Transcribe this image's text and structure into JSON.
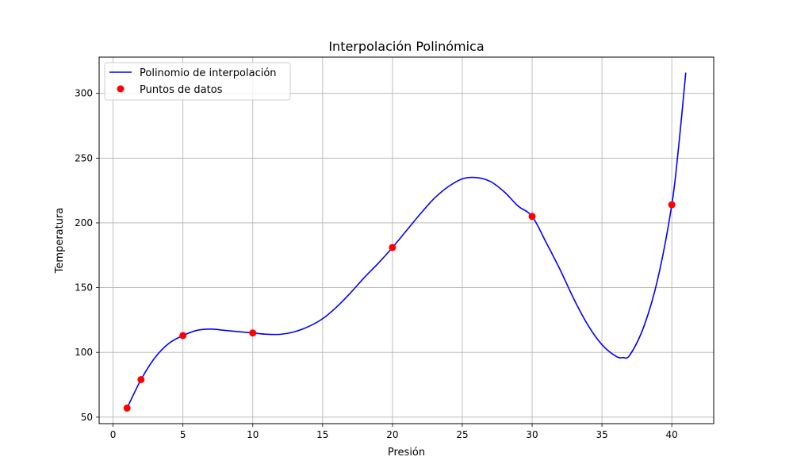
{
  "chart_data": {
    "type": "line",
    "title": "Interpolación Polinómica",
    "xlabel": "Presión",
    "ylabel": "Temperatura",
    "xlim": [
      -1,
      43
    ],
    "ylim": [
      45,
      328
    ],
    "grid": true,
    "legend_position": "upper-left",
    "x_ticks": [
      0,
      5,
      10,
      15,
      20,
      25,
      30,
      35,
      40
    ],
    "y_ticks": [
      50,
      100,
      150,
      200,
      250,
      300
    ],
    "series": [
      {
        "name": "Polinomio de interpolación",
        "kind": "line",
        "color": "#0000ff",
        "x": [
          1,
          2,
          3,
          4,
          5,
          6,
          7,
          8,
          9,
          10,
          11,
          12,
          13,
          14,
          15,
          16,
          17,
          18,
          19,
          20,
          21,
          22,
          23,
          24,
          25,
          26,
          27,
          28,
          29,
          30,
          31,
          32,
          33,
          34,
          35,
          36,
          36.5,
          37,
          38,
          39,
          40,
          40.5,
          41
        ],
        "y": [
          57,
          79,
          96,
          107,
          113,
          117,
          118,
          117,
          116,
          115,
          114,
          114,
          116,
          120,
          126,
          135,
          146,
          158,
          169,
          181,
          194,
          207,
          219,
          228,
          234,
          235,
          232,
          224,
          213,
          205,
          185,
          164,
          141,
          121,
          106,
          97,
          96,
          98,
          120,
          157,
          214,
          260,
          316
        ]
      },
      {
        "name": "Puntos de datos",
        "kind": "scatter",
        "color": "#ff0000",
        "x": [
          1,
          2,
          5,
          10,
          20,
          30,
          40
        ],
        "y": [
          57,
          79,
          113,
          115,
          181,
          205,
          214
        ]
      }
    ]
  }
}
